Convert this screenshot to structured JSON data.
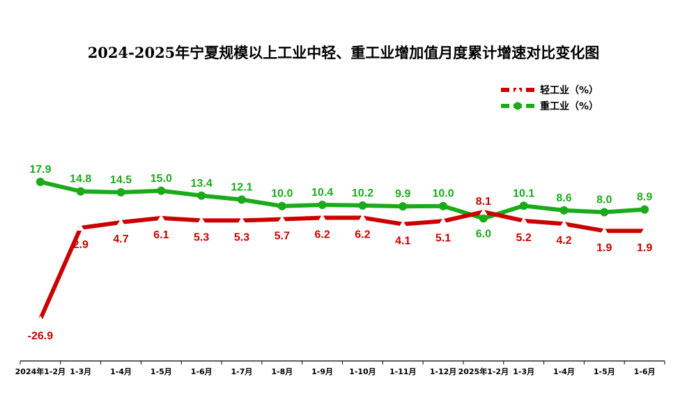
{
  "chart_data": {
    "type": "line",
    "title": "2024-2025年宁夏规模以上工业中轻、重工业增加值月度累计增速对比变化图",
    "categories": [
      "2024年1-2月",
      "1-3月",
      "1-4月",
      "1-5月",
      "1-6月",
      "1-7月",
      "1-8月",
      "1-9月",
      "1-10月",
      "1-11月",
      "1-12月",
      "2025年1-2月",
      "1-3月",
      "1-4月",
      "1-5月",
      "1-6月"
    ],
    "series": [
      {
        "name": "轻工业（%）",
        "color": "#cc0000",
        "marker": "triangle",
        "values": [
          -26.9,
          2.9,
          4.7,
          6.1,
          5.3,
          5.3,
          5.7,
          6.2,
          6.2,
          4.1,
          5.1,
          8.1,
          5.2,
          4.2,
          1.9,
          1.9
        ],
        "labels": [
          "-26.9",
          "2.9",
          "4.7",
          "6.1",
          "5.3",
          "5.3",
          "5.7",
          "6.2",
          "6.2",
          "4.1",
          "5.1",
          "8.1",
          "5.2",
          "4.2",
          "1.9",
          "1.9"
        ]
      },
      {
        "name": "重工业（%）",
        "color": "#1aaa1a",
        "marker": "circle",
        "values": [
          17.9,
          14.8,
          14.5,
          15.0,
          13.4,
          12.1,
          10.0,
          10.4,
          10.2,
          9.9,
          10.0,
          6.0,
          10.1,
          8.6,
          8.0,
          8.9
        ],
        "labels": [
          "17.9",
          "14.8",
          "14.5",
          "15.0",
          "13.4",
          "12.1",
          "10.0",
          "10.4",
          "10.2",
          "9.9",
          "10.0",
          "6.0",
          "10.1",
          "8.6",
          "8.0",
          "8.9"
        ]
      }
    ],
    "legend_position": "top-right",
    "grid": false,
    "ylim": [
      -32,
      26
    ]
  }
}
